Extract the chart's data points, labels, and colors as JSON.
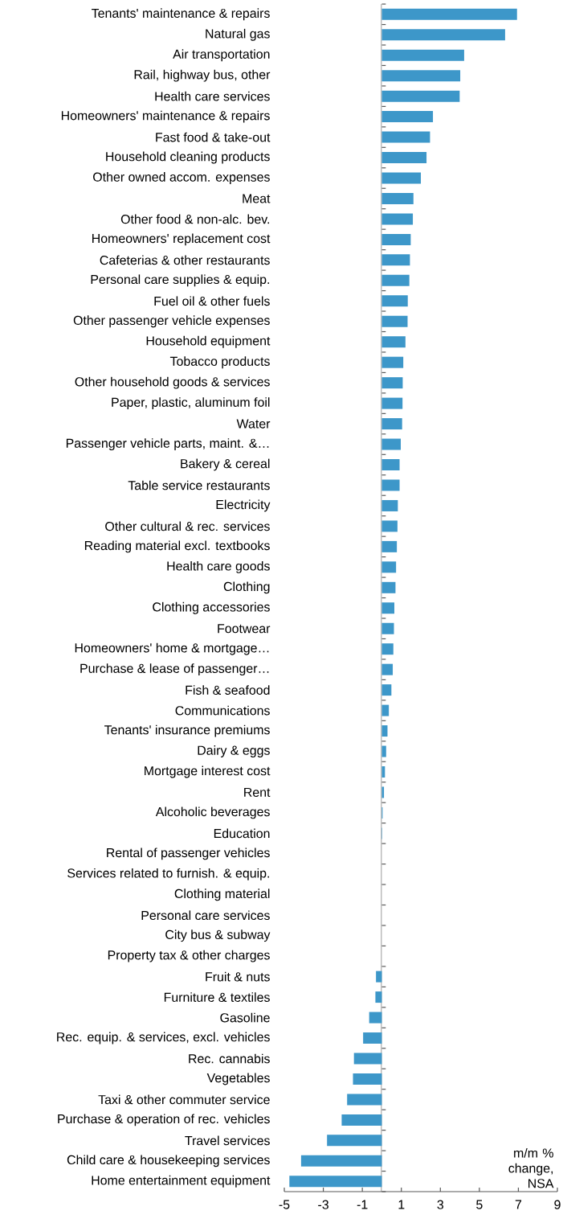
{
  "chart_data": {
    "type": "bar",
    "orientation": "horizontal",
    "categories": [
      "Tenants' maintenance & repairs",
      "Natural gas",
      "Air transportation",
      "Rail, highway bus, other",
      "Health care services",
      "Homeowners' maintenance & repairs",
      "Fast food & take-out",
      "Household cleaning products",
      "Other owned accom. expenses",
      "Meat",
      "Other food & non-alc. bev.",
      "Homeowners' replacement cost",
      "Cafeterias & other restaurants",
      "Personal care supplies & equip.",
      "Fuel oil & other fuels",
      "Other passenger vehicle expenses",
      "Household equipment",
      "Tobacco products",
      "Other household goods & services",
      "Paper, plastic, aluminum foil",
      "Water",
      "Passenger vehicle parts, maint. &…",
      "Bakery & cereal",
      "Table service restaurants",
      "Electricity",
      "Other cultural & rec. services",
      "Reading material excl. textbooks",
      "Health care goods",
      "Clothing",
      "Clothing accessories",
      "Footwear",
      "Homeowners' home & mortgage…",
      "Purchase & lease of passenger…",
      "Fish & seafood",
      "Communications",
      "Tenants' insurance premiums",
      "Dairy & eggs",
      "Mortgage interest cost",
      "Rent",
      "Alcoholic beverages",
      "Education",
      "Rental of passenger vehicles",
      "Services related to furnish. & equip.",
      "Clothing material",
      "Personal care services",
      "City bus & subway",
      "Property tax & other charges",
      "Fruit & nuts",
      "Furniture & textiles",
      "Gasoline",
      "Rec. equip. & services, excl. vehicles",
      "Rec. cannabis",
      "Vegetables",
      "Taxi & other commuter service",
      "Purchase & operation of rec. vehicles",
      "Travel services",
      "Child care & housekeeping services",
      "Home entertainment equipment"
    ],
    "values": [
      6.93,
      6.32,
      4.22,
      4.02,
      3.99,
      2.62,
      2.47,
      2.29,
      2.0,
      1.62,
      1.59,
      1.48,
      1.44,
      1.41,
      1.33,
      1.32,
      1.21,
      1.1,
      1.07,
      1.06,
      1.04,
      0.97,
      0.91,
      0.91,
      0.82,
      0.8,
      0.77,
      0.73,
      0.7,
      0.64,
      0.62,
      0.59,
      0.56,
      0.49,
      0.36,
      0.29,
      0.22,
      0.16,
      0.11,
      0.04,
      0.02,
      0,
      0,
      0,
      0,
      0,
      0,
      -0.3,
      -0.33,
      -0.65,
      -0.96,
      -1.43,
      -1.48,
      -1.78,
      -2.06,
      -2.81,
      -4.14,
      -4.74
    ],
    "color": "#3d97c9",
    "xlim": [
      -5,
      9
    ],
    "xticks": [
      -5,
      -3,
      -1,
      1,
      3,
      5,
      7,
      9
    ],
    "annotations": [
      "m/m % change, NSA"
    ]
  }
}
